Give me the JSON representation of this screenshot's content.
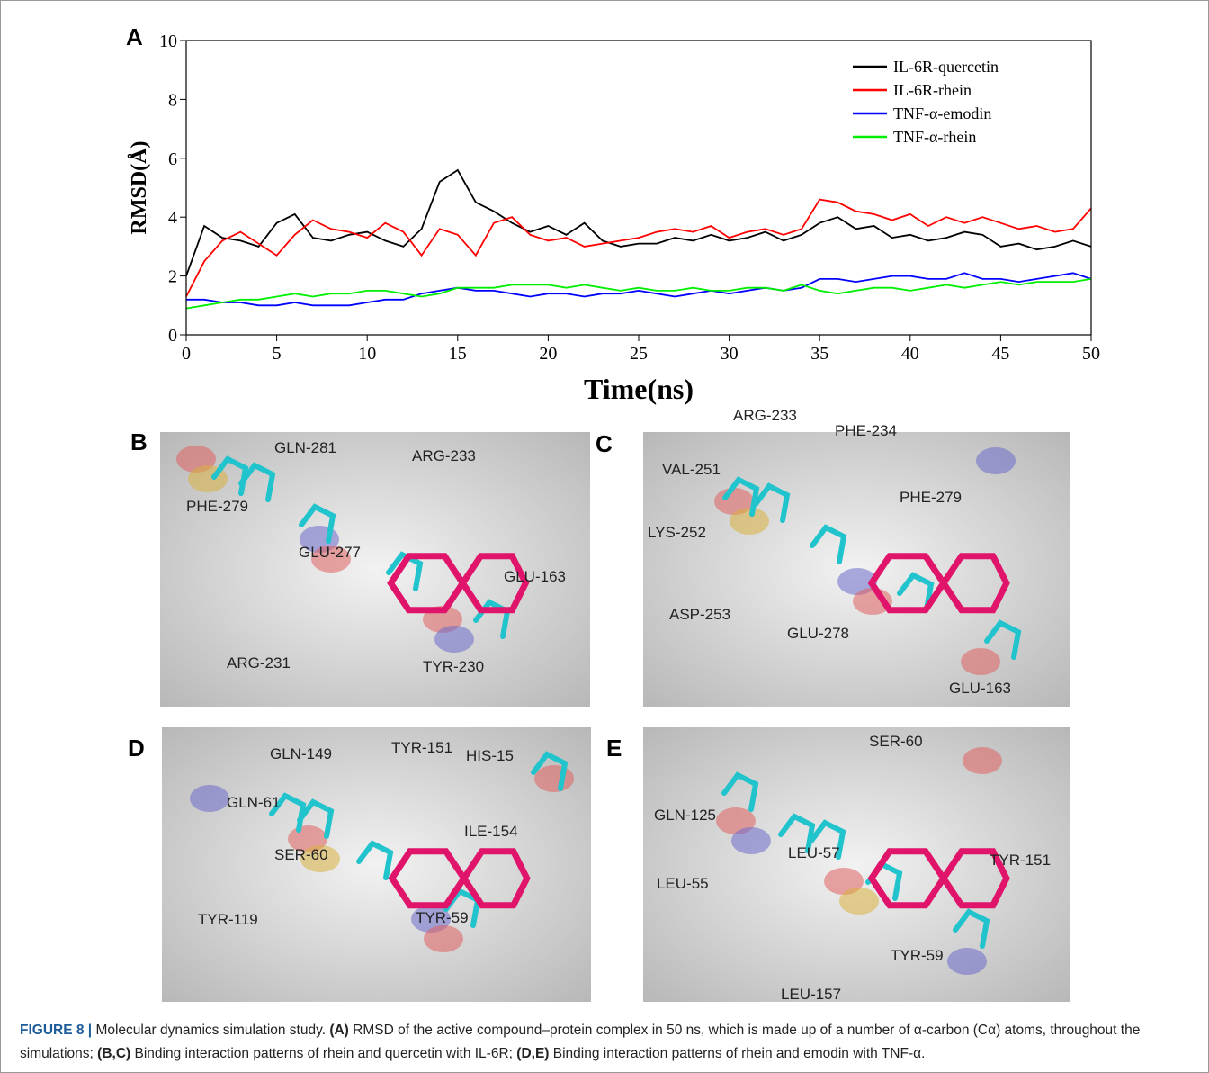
{
  "chart_data": {
    "type": "line",
    "label": "A",
    "x_label": "Time(ns)",
    "y_label": "RMSD(Å)",
    "xlim": [
      0,
      50
    ],
    "xticks": [
      0,
      5,
      10,
      15,
      20,
      25,
      30,
      35,
      40,
      45,
      50
    ],
    "ylim": [
      0,
      10
    ],
    "yticks": [
      0,
      2,
      4,
      6,
      8,
      10
    ],
    "legend": "upper-right",
    "x": [
      0,
      1,
      2,
      3,
      4,
      5,
      6,
      7,
      8,
      9,
      10,
      11,
      12,
      13,
      14,
      15,
      16,
      17,
      18,
      19,
      20,
      21,
      22,
      23,
      24,
      25,
      26,
      27,
      28,
      29,
      30,
      31,
      32,
      33,
      34,
      35,
      36,
      37,
      38,
      39,
      40,
      41,
      42,
      43,
      44,
      45,
      46,
      47,
      48,
      49,
      50
    ],
    "series": [
      {
        "name": "IL-6R-quercetin",
        "color": "#000000",
        "values": [
          2,
          3.7,
          3.3,
          3.2,
          3.0,
          3.8,
          4.1,
          3.3,
          3.2,
          3.4,
          3.5,
          3.2,
          3.0,
          3.6,
          5.2,
          5.6,
          4.5,
          4.2,
          3.8,
          3.5,
          3.7,
          3.4,
          3.8,
          3.2,
          3.0,
          3.1,
          3.1,
          3.3,
          3.2,
          3.4,
          3.2,
          3.3,
          3.5,
          3.2,
          3.4,
          3.8,
          4.0,
          3.6,
          3.7,
          3.3,
          3.4,
          3.2,
          3.3,
          3.5,
          3.4,
          3.0,
          3.1,
          2.9,
          3.0,
          3.2,
          3.0
        ]
      },
      {
        "name": "IL-6R-rhein",
        "color": "#ff0000",
        "values": [
          1.3,
          2.5,
          3.2,
          3.5,
          3.1,
          2.7,
          3.4,
          3.9,
          3.6,
          3.5,
          3.3,
          3.8,
          3.5,
          2.7,
          3.6,
          3.4,
          2.7,
          3.8,
          4.0,
          3.4,
          3.2,
          3.3,
          3.0,
          3.1,
          3.2,
          3.3,
          3.5,
          3.6,
          3.5,
          3.7,
          3.3,
          3.5,
          3.6,
          3.4,
          3.6,
          4.6,
          4.5,
          4.2,
          4.1,
          3.9,
          4.1,
          3.7,
          4.0,
          3.8,
          4.0,
          3.8,
          3.6,
          3.7,
          3.5,
          3.6,
          4.3
        ]
      },
      {
        "name": "TNF-α-emodin",
        "color": "#0000ff",
        "values": [
          1.2,
          1.2,
          1.1,
          1.1,
          1.0,
          1.0,
          1.1,
          1.0,
          1.0,
          1.0,
          1.1,
          1.2,
          1.2,
          1.4,
          1.5,
          1.6,
          1.5,
          1.5,
          1.4,
          1.3,
          1.4,
          1.4,
          1.3,
          1.4,
          1.4,
          1.5,
          1.4,
          1.3,
          1.4,
          1.5,
          1.4,
          1.5,
          1.6,
          1.5,
          1.6,
          1.9,
          1.9,
          1.8,
          1.9,
          2.0,
          2.0,
          1.9,
          1.9,
          2.1,
          1.9,
          1.9,
          1.8,
          1.9,
          2.0,
          2.1,
          1.9
        ]
      },
      {
        "name": "TNF-α-rhein",
        "color": "#00ee00",
        "values": [
          0.9,
          1.0,
          1.1,
          1.2,
          1.2,
          1.3,
          1.4,
          1.3,
          1.4,
          1.4,
          1.5,
          1.5,
          1.4,
          1.3,
          1.4,
          1.6,
          1.6,
          1.6,
          1.7,
          1.7,
          1.7,
          1.6,
          1.7,
          1.6,
          1.5,
          1.6,
          1.5,
          1.5,
          1.6,
          1.5,
          1.5,
          1.6,
          1.6,
          1.5,
          1.7,
          1.5,
          1.4,
          1.5,
          1.6,
          1.6,
          1.5,
          1.6,
          1.7,
          1.6,
          1.7,
          1.8,
          1.7,
          1.8,
          1.8,
          1.8,
          1.9
        ]
      }
    ]
  },
  "panels": [
    {
      "label": "B",
      "residues": [
        "PHE-279",
        "GLN-281",
        "ARG-233",
        "GLU-277",
        "GLU-163",
        "ARG-231",
        "TYR-230"
      ]
    },
    {
      "label": "C",
      "residues": [
        "ARG-233",
        "PHE-234",
        "VAL-251",
        "PHE-279",
        "LYS-252",
        "ASP-253",
        "GLU-278",
        "GLU-163"
      ]
    },
    {
      "label": "D",
      "residues": [
        "GLN-149",
        "TYR-151",
        "HIS-15",
        "GLN-61",
        "ILE-154",
        "SER-60",
        "TYR-119",
        "TYR-59"
      ]
    },
    {
      "label": "E",
      "residues": [
        "SER-60",
        "GLN-125",
        "LEU-57",
        "TYR-151",
        "LEU-55",
        "TYR-59",
        "LEU-157"
      ]
    }
  ],
  "caption": [
    {
      "text": "FIGURE 8 |",
      "bold": true
    },
    {
      "text": " Molecular dynamics simulation study. ",
      "bold": false
    },
    {
      "text": "(A)",
      "bold": true
    },
    {
      "text": " RMSD of the active compound–protein complex in 50 ns, which is made up of a number of α-carbon (Cα) atoms, throughout the simulations; ",
      "bold": false
    },
    {
      "text": "(B,C)",
      "bold": true
    },
    {
      "text": " Binding interaction patterns of rhein and quercetin with IL-6R; ",
      "bold": false
    },
    {
      "text": "(D,E)",
      "bold": true
    },
    {
      "text": " Binding interaction patterns of rhein and emodin with TNF-α.",
      "bold": false
    }
  ]
}
